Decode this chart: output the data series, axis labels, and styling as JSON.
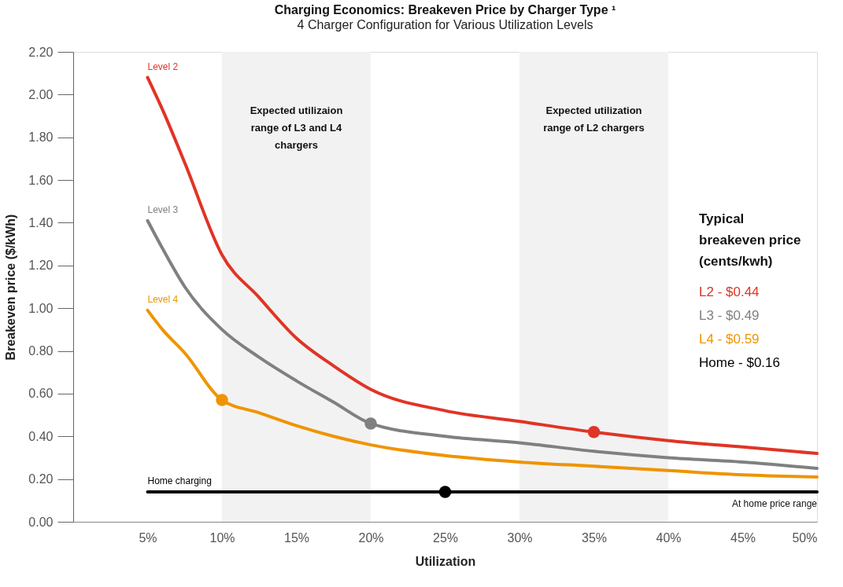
{
  "chart_data": {
    "type": "line",
    "title": "Charging Economics: Breakeven Price by Charger Type ¹",
    "subtitle": "4 Charger Configuration for Various Utilization Levels",
    "xlabel": "Utilization",
    "ylabel": "Breakeven price ($/kWh)",
    "legend_title": "Typical breakeven price (cents/kwh)",
    "x": [
      5,
      6,
      7.5,
      10,
      12.5,
      15,
      17.5,
      20,
      25,
      30,
      35,
      40,
      45,
      50
    ],
    "series": [
      {
        "name": "Level 2",
        "color": "#e03426",
        "values": [
          2.08,
          1.93,
          1.68,
          1.25,
          1.05,
          0.86,
          0.73,
          0.62,
          0.52,
          0.47,
          0.42,
          0.38,
          0.35,
          0.32
        ]
      },
      {
        "name": "Level 3",
        "color": "#808080",
        "values": [
          1.41,
          1.28,
          1.1,
          0.9,
          0.77,
          0.66,
          0.56,
          0.46,
          0.4,
          0.37,
          0.33,
          0.3,
          0.28,
          0.25
        ]
      },
      {
        "name": "Level 4",
        "color": "#ef9400",
        "values": [
          0.99,
          0.9,
          0.79,
          0.57,
          0.51,
          0.45,
          0.4,
          0.36,
          0.31,
          0.28,
          0.26,
          0.24,
          0.22,
          0.21
        ]
      },
      {
        "name": "Home charging",
        "color": "#000000",
        "x": [
          5,
          50
        ],
        "values": [
          0.14,
          0.14
        ]
      },
      {
        "type": "scatter",
        "x": [
          10,
          20,
          25,
          35
        ],
        "values": [
          0.57,
          0.46,
          0.14,
          0.42
        ],
        "colors": [
          "#ef9400",
          "#808080",
          "#000000",
          "#e03426"
        ]
      }
    ],
    "xlim": [
      0,
      50
    ],
    "ylim": [
      0,
      2.2
    ],
    "xticks": [
      {
        "value": 5,
        "label": "5%"
      },
      {
        "value": 10,
        "label": "10%"
      },
      {
        "value": 15,
        "label": "15%"
      },
      {
        "value": 20,
        "label": "20%"
      },
      {
        "value": 25,
        "label": "25%"
      },
      {
        "value": 30,
        "label": "30%"
      },
      {
        "value": 35,
        "label": "35%"
      },
      {
        "value": 40,
        "label": "40%"
      },
      {
        "value": 45,
        "label": "45%"
      },
      {
        "value": 50,
        "label": "50%"
      }
    ],
    "yticks": [
      {
        "value": 0,
        "label": "0.00"
      },
      {
        "value": 0.2,
        "label": "0.20"
      },
      {
        "value": 0.4,
        "label": "0.40"
      },
      {
        "value": 0.6,
        "label": "0.60"
      },
      {
        "value": 0.8,
        "label": "0.80"
      },
      {
        "value": 1,
        "label": "1.00"
      },
      {
        "value": 1.2,
        "label": "1.20"
      },
      {
        "value": 1.4,
        "label": "1.40"
      },
      {
        "value": 1.6,
        "label": "1.60"
      },
      {
        "value": 1.8,
        "label": "1.80"
      },
      {
        "value": 2,
        "label": "2.00"
      },
      {
        "value": 2.2,
        "label": "2.20"
      }
    ],
    "bands": [
      {
        "axis": "x",
        "from": 10,
        "to": 20,
        "label": "Expected utilizaion range of L3 and L4 chargers",
        "color": "#f2f2f2"
      },
      {
        "axis": "x",
        "from": 30,
        "to": 40,
        "label": "Expected utilization range of L2 chargers",
        "color": "#f2f2f2"
      }
    ],
    "annotations": [
      "L2 - $0.44",
      "L3 - $0.49",
      "L4 - $0.59",
      "Home - $0.16",
      {
        "text": "At home price range",
        "x": 50,
        "y": 0.14
      }
    ],
    "grid": false
  }
}
